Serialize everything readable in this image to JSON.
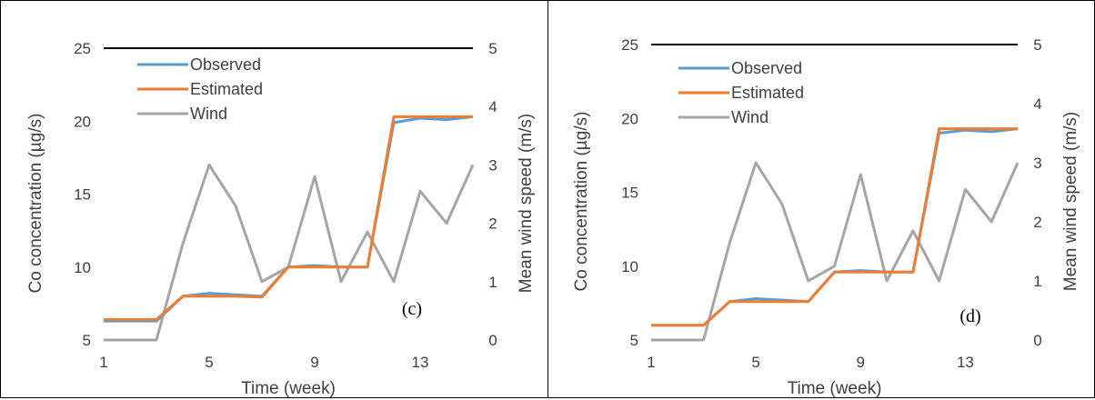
{
  "colors": {
    "observed": "#5B9BD5",
    "estimated": "#ED7D31",
    "wind": "#A5A5A5",
    "top_border": "#000000",
    "text": "#404040"
  },
  "chart_data": [
    {
      "type": "line",
      "panel_label": "(c)",
      "xlabel": "Time (week)",
      "ylabel": "Co concentration (µg/s)",
      "y2label": "Mean wind speed (m/s)",
      "xlim": [
        1,
        15
      ],
      "ylim": [
        5,
        25
      ],
      "y2lim": [
        0,
        5
      ],
      "x_ticks": [
        "1",
        "5",
        "9",
        "13"
      ],
      "y_ticks": [
        "5",
        "10",
        "15",
        "20",
        "25"
      ],
      "y2_ticks": [
        "0",
        "1",
        "2",
        "3",
        "4",
        "5"
      ],
      "legend_position": "top-left",
      "grid": false,
      "x": [
        1,
        2,
        3,
        4,
        5,
        6,
        7,
        8,
        9,
        10,
        11,
        12,
        13,
        14,
        15
      ],
      "series": [
        {
          "name": "Observed",
          "axis": "left",
          "color": "#5B9BD5",
          "values": [
            6.3,
            6.3,
            6.3,
            8.0,
            8.2,
            8.1,
            8.0,
            10.0,
            10.1,
            10.0,
            10.0,
            19.9,
            20.2,
            20.1,
            20.3
          ]
        },
        {
          "name": "Estimated",
          "axis": "left",
          "color": "#ED7D31",
          "values": [
            6.4,
            6.4,
            6.4,
            8.0,
            8.0,
            8.0,
            7.95,
            10.0,
            10.0,
            10.0,
            10.0,
            20.3,
            20.3,
            20.3,
            20.3
          ]
        },
        {
          "name": "Wind",
          "axis": "right",
          "color": "#A5A5A5",
          "values": [
            0,
            0,
            0,
            1.65,
            3.0,
            2.3,
            1.0,
            1.25,
            2.8,
            1.0,
            1.85,
            1.0,
            2.55,
            2.0,
            3.0
          ]
        }
      ]
    },
    {
      "type": "line",
      "panel_label": "(d)",
      "xlabel": "Time (week)",
      "ylabel": "Co concentration (µg/s)",
      "y2label": "Mean wind speed (m/s)",
      "xlim": [
        1,
        15
      ],
      "ylim": [
        5,
        25
      ],
      "y2lim": [
        0,
        5
      ],
      "x_ticks": [
        "1",
        "5",
        "9",
        "13"
      ],
      "y_ticks": [
        "5",
        "10",
        "15",
        "20",
        "25"
      ],
      "y2_ticks": [
        "0",
        "1",
        "2",
        "3",
        "4",
        "5"
      ],
      "legend_position": "top-left",
      "grid": false,
      "x": [
        1,
        2,
        3,
        4,
        5,
        6,
        7,
        8,
        9,
        10,
        11,
        12,
        13,
        14,
        15
      ],
      "series": [
        {
          "name": "Observed",
          "axis": "left",
          "color": "#5B9BD5",
          "values": [
            6.0,
            6.0,
            6.0,
            7.6,
            7.8,
            7.7,
            7.6,
            9.6,
            9.7,
            9.6,
            9.6,
            19.0,
            19.2,
            19.1,
            19.3
          ]
        },
        {
          "name": "Estimated",
          "axis": "left",
          "color": "#ED7D31",
          "values": [
            6.0,
            6.0,
            6.0,
            7.6,
            7.6,
            7.6,
            7.6,
            9.6,
            9.6,
            9.6,
            9.6,
            19.3,
            19.3,
            19.3,
            19.3
          ]
        },
        {
          "name": "Wind",
          "axis": "right",
          "color": "#A5A5A5",
          "values": [
            0,
            0,
            0,
            1.65,
            3.0,
            2.3,
            1.0,
            1.25,
            2.8,
            1.0,
            1.85,
            1.0,
            2.55,
            2.0,
            3.0
          ]
        }
      ]
    }
  ]
}
